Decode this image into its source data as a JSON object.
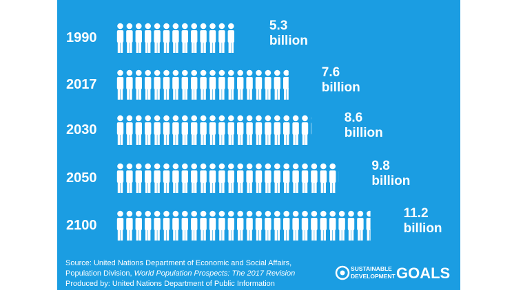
{
  "chart_data": {
    "type": "pictograph",
    "categories": [
      "1990",
      "2017",
      "2030",
      "2050",
      "2100"
    ],
    "values": [
      5.3,
      7.6,
      8.6,
      9.8,
      11.2
    ],
    "value_labels": [
      "5.3 billion",
      "7.6 billion",
      "8.6 billion",
      "9.8 billion",
      "11.2 billion"
    ],
    "color": "#ffffff",
    "background": "#1b9de2",
    "source": {
      "line1": "Source: United Nations Department of Economic and Social Affairs,",
      "line2": "Population Division, ",
      "line2_italic": "World Population Prospects: The 2017 Revision",
      "line3": "Produced by: United Nations Department of Public Information"
    },
    "logo": {
      "top": "SUSTAINABLE",
      "bottom": "DEVELOPMENT",
      "word": "GOALS"
    }
  }
}
